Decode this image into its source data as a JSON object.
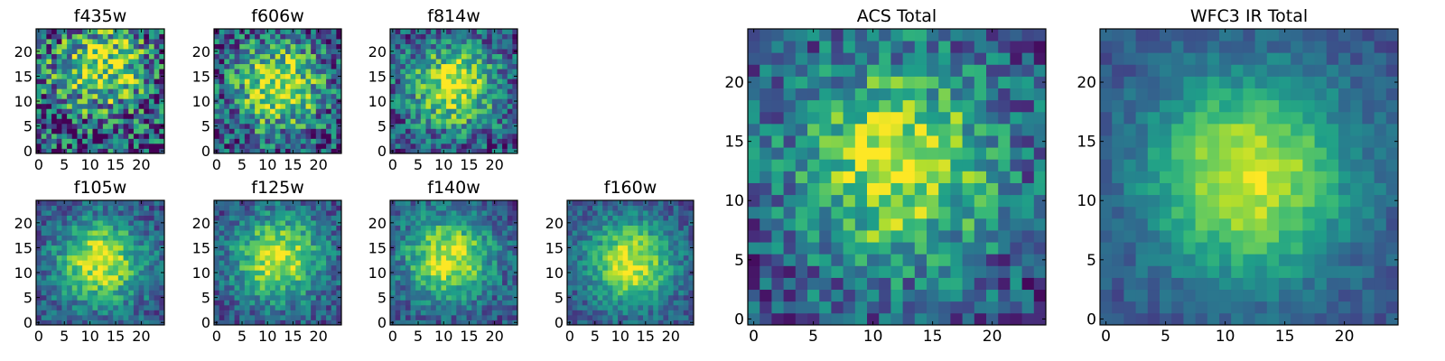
{
  "chart_data": [
    {
      "type": "heatmap",
      "title": "f435w",
      "xticks": [
        "0",
        "5",
        "10",
        "15",
        "20"
      ],
      "yticks": [
        "0",
        "5",
        "10",
        "15",
        "20"
      ],
      "xlim": [
        0,
        25
      ],
      "ylim": [
        0,
        25
      ],
      "grid": false,
      "colormap": "viridis",
      "peak": [
        12,
        17
      ],
      "noise": 0.7
    },
    {
      "type": "heatmap",
      "title": "f606w",
      "xticks": [
        "0",
        "5",
        "10",
        "15",
        "20"
      ],
      "yticks": [
        "0",
        "5",
        "10",
        "15",
        "20"
      ],
      "xlim": [
        0,
        25
      ],
      "ylim": [
        0,
        25
      ],
      "grid": false,
      "colormap": "viridis",
      "peak": [
        12,
        13
      ],
      "noise": 0.55
    },
    {
      "type": "heatmap",
      "title": "f814w",
      "xticks": [
        "0",
        "5",
        "10",
        "15",
        "20"
      ],
      "yticks": [
        "0",
        "5",
        "10",
        "15",
        "20"
      ],
      "xlim": [
        0,
        25
      ],
      "ylim": [
        0,
        25
      ],
      "grid": false,
      "colormap": "viridis",
      "peak": [
        12,
        13
      ],
      "noise": 0.45
    },
    {
      "type": "heatmap",
      "title": "f105w",
      "xticks": [
        "0",
        "5",
        "10",
        "15",
        "20"
      ],
      "yticks": [
        "0",
        "5",
        "10",
        "15",
        "20"
      ],
      "xlim": [
        0,
        25
      ],
      "ylim": [
        0,
        25
      ],
      "grid": false,
      "colormap": "viridis",
      "peak": [
        12,
        12
      ],
      "noise": 0.3
    },
    {
      "type": "heatmap",
      "title": "f125w",
      "xticks": [
        "0",
        "5",
        "10",
        "15",
        "20"
      ],
      "yticks": [
        "0",
        "5",
        "10",
        "15",
        "20"
      ],
      "xlim": [
        0,
        25
      ],
      "ylim": [
        0,
        25
      ],
      "grid": false,
      "colormap": "viridis",
      "peak": [
        12,
        13
      ],
      "noise": 0.3
    },
    {
      "type": "heatmap",
      "title": "f140w",
      "xticks": [
        "0",
        "5",
        "10",
        "15",
        "20"
      ],
      "yticks": [
        "0",
        "5",
        "10",
        "15",
        "20"
      ],
      "xlim": [
        0,
        25
      ],
      "ylim": [
        0,
        25
      ],
      "grid": false,
      "colormap": "viridis",
      "peak": [
        11,
        13
      ],
      "noise": 0.3
    },
    {
      "type": "heatmap",
      "title": "f160w",
      "xticks": [
        "0",
        "5",
        "10",
        "15",
        "20"
      ],
      "yticks": [
        "0",
        "5",
        "10",
        "15",
        "20"
      ],
      "xlim": [
        0,
        25
      ],
      "ylim": [
        0,
        25
      ],
      "grid": false,
      "colormap": "viridis",
      "peak": [
        12,
        12
      ],
      "noise": 0.25
    },
    {
      "type": "heatmap",
      "title": "ACS Total",
      "xticks": [
        "0",
        "5",
        "10",
        "15",
        "20"
      ],
      "yticks": [
        "0",
        "5",
        "10",
        "15",
        "20"
      ],
      "xlim": [
        0,
        25
      ],
      "ylim": [
        0,
        25
      ],
      "grid": false,
      "colormap": "viridis",
      "peak": [
        12,
        13
      ],
      "noise": 0.4
    },
    {
      "type": "heatmap",
      "title": "WFC3 IR Total",
      "xticks": [
        "0",
        "5",
        "10",
        "15",
        "20"
      ],
      "yticks": [
        "0",
        "5",
        "10",
        "15",
        "20"
      ],
      "xlim": [
        0,
        25
      ],
      "ylim": [
        0,
        25
      ],
      "grid": false,
      "colormap": "viridis",
      "peak": [
        12,
        12
      ],
      "noise": 0.15
    }
  ]
}
